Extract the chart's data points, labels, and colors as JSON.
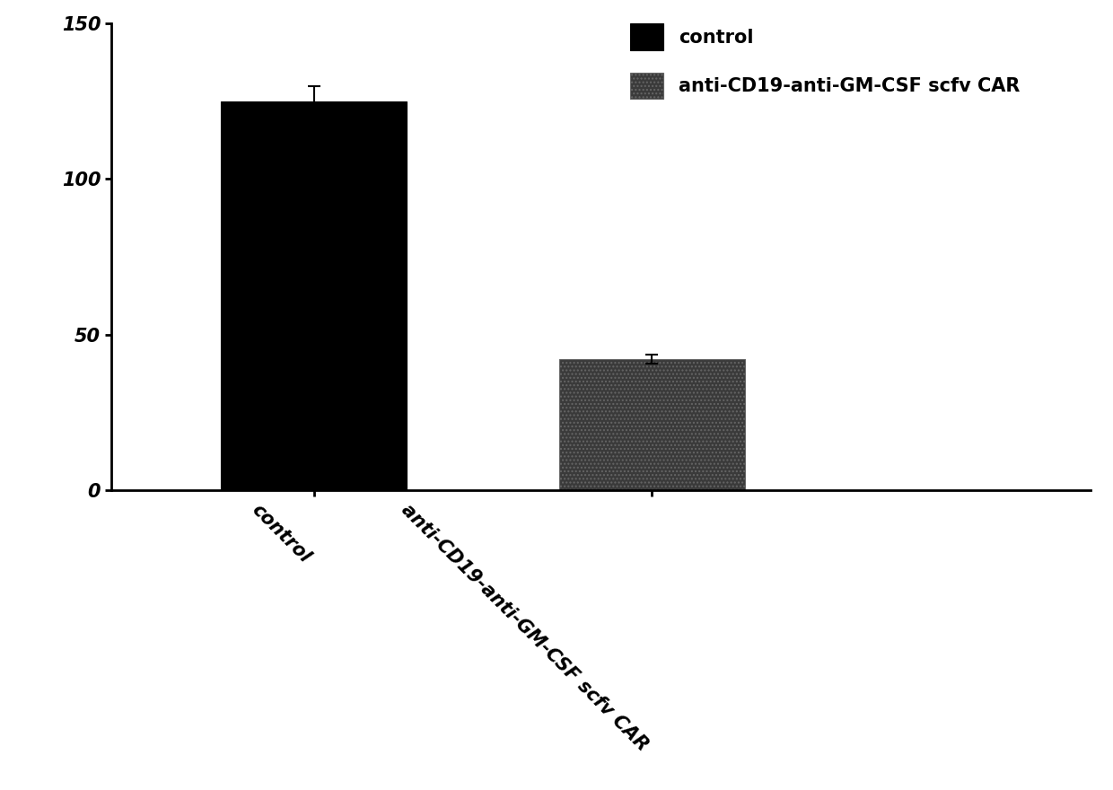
{
  "categories": [
    "control",
    "anti-CD19-anti-GM-CSF scfv CAR"
  ],
  "values": [
    125.0,
    42.0
  ],
  "errors": [
    5.0,
    1.5
  ],
  "bar_colors": [
    "#000000",
    "#3a3a3a"
  ],
  "bar_hatches": [
    null,
    "...."
  ],
  "hatch_color": "#888888",
  "ylim": [
    0,
    150
  ],
  "yticks": [
    0,
    50,
    100,
    150
  ],
  "legend_labels": [
    "control",
    "anti-CD19-anti-GM-CSF scfv CAR"
  ],
  "legend_colors": [
    "#000000",
    "#3a3a3a"
  ],
  "legend_hatches": [
    null,
    "...."
  ],
  "background_color": "#ffffff",
  "tick_labelsize": 15,
  "legend_fontsize": 15,
  "bar_width": 0.55,
  "x_positions": [
    0.7,
    1.7
  ]
}
